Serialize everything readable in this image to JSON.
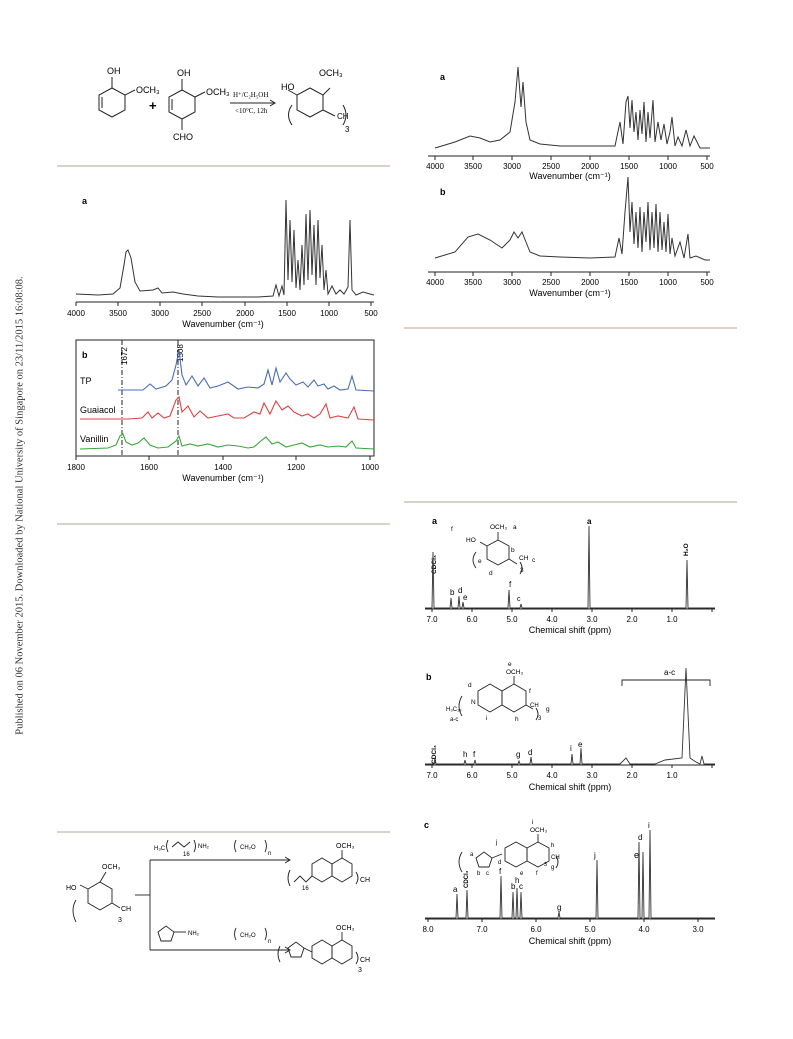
{
  "side_note": "Published on 06 November 2015. Downloaded by National University of Singapore on 23/11/2015 16:08:08.",
  "scheme1": {
    "guaiacol_sub": "OCH₃",
    "oh": "OH",
    "vanillin_sub": "OCH₃",
    "cho": "CHO",
    "plus": "+",
    "conditions_top": "H⁺/C₂H₅OH",
    "conditions_bottom": "<10°C, 12h",
    "product_ho": "HO",
    "product_och3": "OCH₃",
    "product_ch": "CH",
    "product_sub3": "3"
  },
  "ftir_left": {
    "panel_a_label": "a",
    "panel_b_label": "b",
    "xlabel_a": "Wavenumber (cm⁻¹)",
    "xlabel_b": "Wavenumber (cm⁻¹)",
    "ticks_a": [
      "4000",
      "3500",
      "3000",
      "2500",
      "2000",
      "1500",
      "1000",
      "500"
    ],
    "ticks_b": [
      "1800",
      "1600",
      "1400",
      "1200",
      "1000"
    ],
    "marker1": "1672",
    "marker2": "1508",
    "series": [
      "TP",
      "Guaiacol",
      "Vanillin"
    ],
    "colors": {
      "TP": "#4a6db3",
      "Guaiacol": "#e04040",
      "Vanillin": "#39a639"
    }
  },
  "ftir_right": {
    "panel_a_label": "a",
    "panel_b_label": "b",
    "xlabel": "Wavenumber (cm⁻¹)",
    "ticks": [
      "4000",
      "3500",
      "3000",
      "2500",
      "2000",
      "1500",
      "1000",
      "500"
    ]
  },
  "nmr": {
    "a": {
      "label": "a",
      "xlabel": "Chemical shift (ppm)",
      "ticks": [
        "7.0",
        "6.0",
        "5.0",
        "4.0",
        "3.0",
        "2.0",
        "1.0"
      ],
      "peaks": [
        "CDCl₃",
        "b",
        "d",
        "e",
        "f",
        "c",
        "a",
        "H₂O"
      ],
      "struct": [
        "f",
        "HO",
        "OCH₃",
        "a",
        "b",
        "c",
        "CH",
        "d",
        "e",
        "3"
      ]
    },
    "b": {
      "label": "b",
      "xlabel": "Chemical shift (ppm)",
      "ticks": [
        "7.0",
        "6.0",
        "5.0",
        "4.0",
        "3.0",
        "2.0",
        "1.0"
      ],
      "peaks": [
        "CDCl₃",
        "h",
        "f",
        "g",
        "d",
        "i",
        "e"
      ],
      "bracket": "a-c",
      "struct": [
        "e",
        "OCH₃",
        "d",
        "f",
        "N",
        "H₃C₁₈",
        "a-c",
        "i",
        "h",
        "CH",
        "g",
        "3"
      ]
    },
    "c": {
      "label": "c",
      "xlabel": "Chemical shift (ppm)",
      "ticks": [
        "8.0",
        "7.0",
        "6.0",
        "5.0",
        "4.0",
        "3.0"
      ],
      "peaks": [
        "a",
        "CDCl₃",
        "f",
        "b",
        "h",
        "c",
        "g",
        "j",
        "d",
        "e",
        "i"
      ],
      "struct": [
        "i",
        "OCH₃",
        "j",
        "a",
        "b",
        "c",
        "d",
        "e",
        "f",
        "h",
        "CH",
        "g",
        "3"
      ]
    }
  },
  "scheme2": {
    "ho": "HO",
    "och3": "OCH₃",
    "ch": "CH",
    "sub3": "3",
    "amine1": "H₃C",
    "amine1_sub": "16",
    "amine1_nh2": "NH₂",
    "ch2o": "CH₂O",
    "n": "n",
    "amine2_nh2": "NH₂",
    "prod_och3_1": "OCH₃",
    "prod_16": "16",
    "prod_ch_1": "CH",
    "prod_och3_2": "OCH₃",
    "prod_ch_2": "CH",
    "prod_3": "3"
  }
}
